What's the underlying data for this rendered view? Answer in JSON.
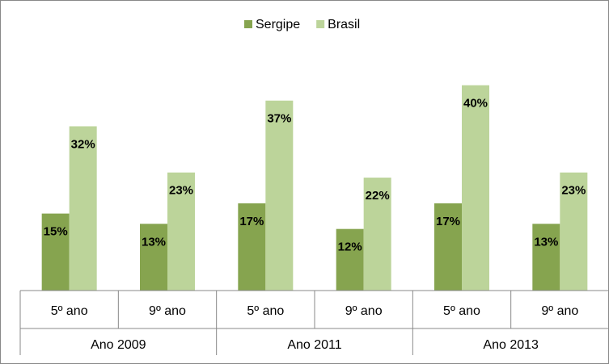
{
  "chart_data": {
    "type": "bar",
    "categories": [
      "5º ano",
      "9º ano",
      "5º ano",
      "9º ano",
      "5º ano",
      "9º ano"
    ],
    "groups": [
      "Ano 2009",
      "Ano 2011",
      "Ano 2013"
    ],
    "series": [
      {
        "name": "Sergipe",
        "color": "#86a44f",
        "values": [
          15,
          13,
          17,
          12,
          17,
          13
        ],
        "value_labels": [
          "15%",
          "13%",
          "17%",
          "12%",
          "17%",
          "13%"
        ]
      },
      {
        "name": "Brasil",
        "color": "#bcd49a",
        "values": [
          32,
          23,
          37,
          22,
          40,
          23
        ],
        "value_labels": [
          "32%",
          "23%",
          "37%",
          "22%",
          "40%",
          "23%"
        ]
      }
    ],
    "legend": "top"
  }
}
